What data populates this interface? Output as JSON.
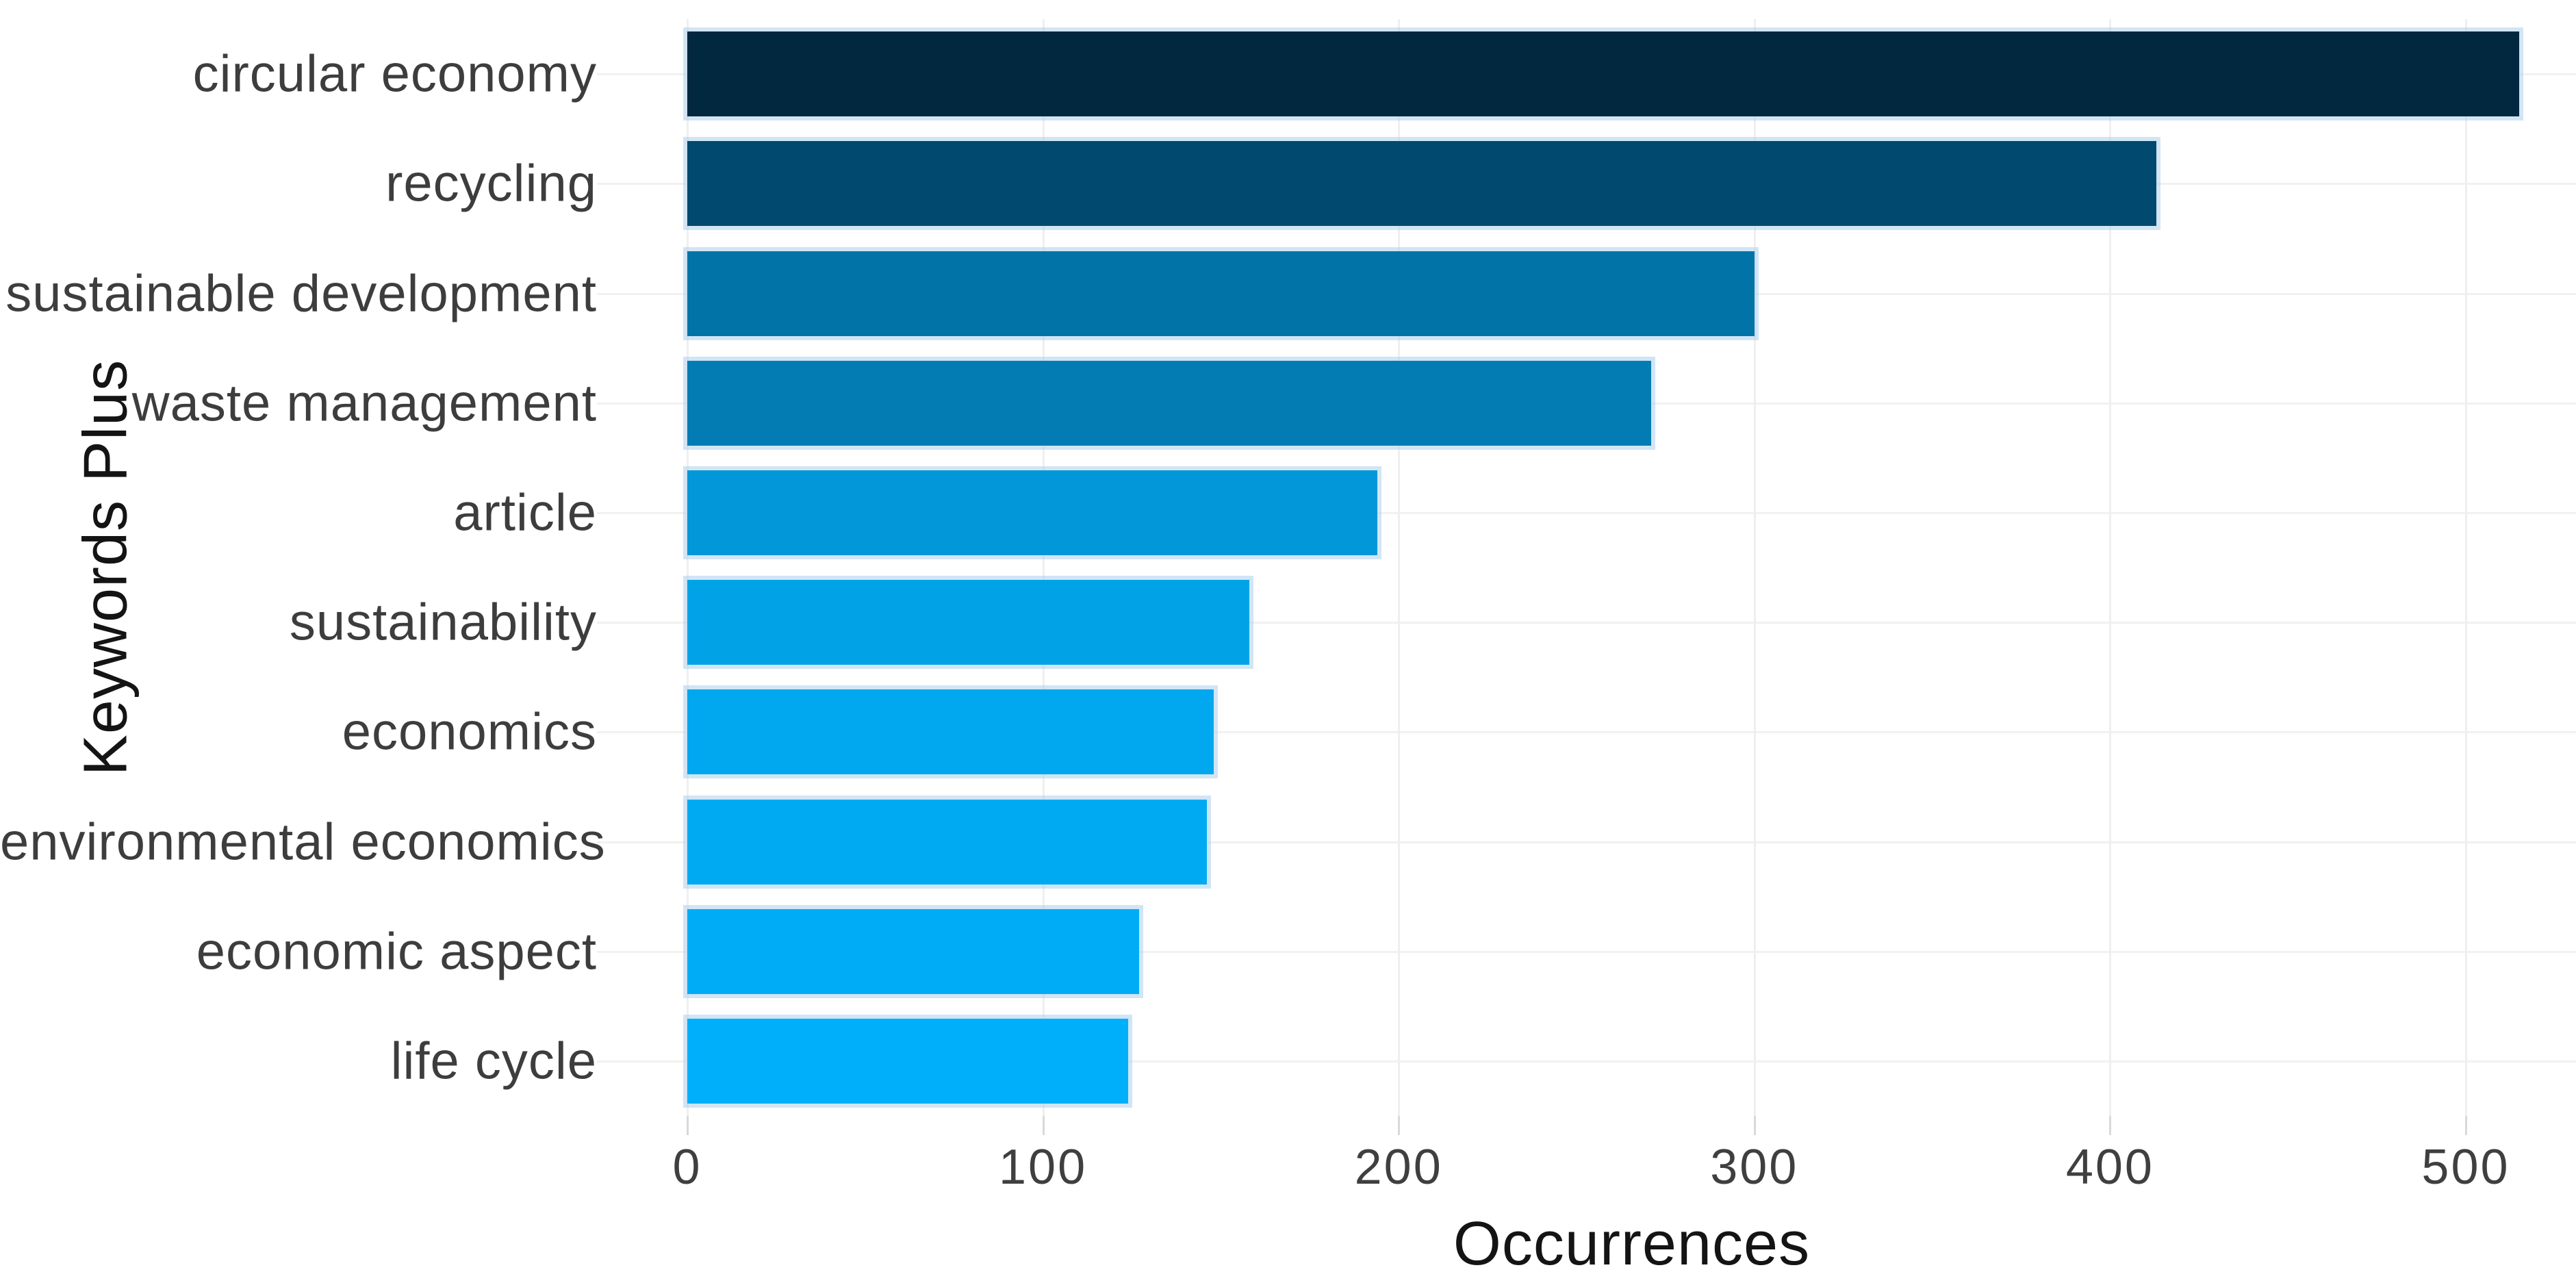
{
  "figure": {
    "background_color": "#ffffff",
    "gridline_color": "#efefef",
    "row_gridline_color": "#f1f1f1",
    "tick_mark_color": "#d9d9d9",
    "axis_text_color": "#3d3d3d",
    "axis_title_color": "#141414",
    "bar_edge_color": "#add0ec"
  },
  "chart_data": {
    "type": "bar",
    "orientation": "horizontal",
    "title": "",
    "xlabel": "Occurrences",
    "ylabel": "Keywords Plus",
    "categories": [
      "circular economy",
      "recycling",
      "sustainable development",
      "waste management",
      "article",
      "sustainability",
      "economics",
      "environmental economics",
      "economic aspect",
      "life cycle"
    ],
    "values": [
      515,
      413,
      300,
      271,
      194,
      158,
      148,
      146,
      127,
      124
    ],
    "bar_colors": [
      "#02283f",
      "#02496f",
      "#0173a7",
      "#027cb2",
      "#0197d8",
      "#02a3e6",
      "#01a7ef",
      "#00aaf2",
      "#00acf5",
      "#00affa"
    ],
    "x_ticks": [
      0,
      100,
      200,
      300,
      400,
      500
    ],
    "xlim": [
      0,
      531
    ],
    "grid": "major vertical gridlines + horizontal row gridlines",
    "legend": "none"
  }
}
